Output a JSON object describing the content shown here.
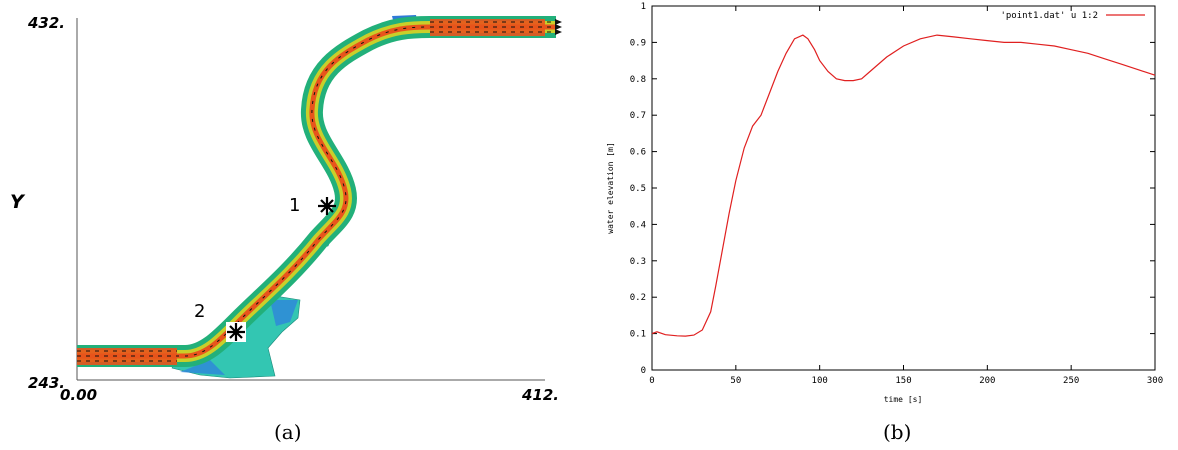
{
  "panel_a": {
    "y_axis_label": "Y",
    "y_top_label": "432.",
    "y_bottom_label": "243.",
    "x_left_label": "0.00",
    "x_right_label": "412.",
    "points": [
      {
        "label": "1"
      },
      {
        "label": "2"
      }
    ],
    "caption": "(a)"
  },
  "panel_b": {
    "caption": "(b)"
  },
  "chart_data": {
    "type": "line",
    "title": "",
    "xlabel": "time [s]",
    "ylabel": "water elevation [m]",
    "xlim": [
      0,
      300
    ],
    "ylim": [
      0,
      1
    ],
    "xticks": [
      0,
      50,
      100,
      150,
      200,
      250,
      300
    ],
    "yticks": [
      0,
      0.1,
      0.2,
      0.3,
      0.4,
      0.5,
      0.6,
      0.7,
      0.8,
      0.9,
      1
    ],
    "legend_position": "top-right",
    "grid": false,
    "series": [
      {
        "name": "'point1.dat' u 1:2",
        "color": "#e02020",
        "x": [
          0,
          3,
          8,
          15,
          20,
          25,
          30,
          35,
          38,
          42,
          46,
          50,
          55,
          60,
          65,
          70,
          75,
          80,
          85,
          90,
          93,
          97,
          100,
          105,
          110,
          115,
          120,
          125,
          130,
          140,
          150,
          160,
          170,
          180,
          190,
          200,
          210,
          220,
          230,
          240,
          250,
          260,
          270,
          280,
          290,
          300
        ],
        "y": [
          0.1,
          0.105,
          0.097,
          0.094,
          0.093,
          0.096,
          0.11,
          0.16,
          0.23,
          0.33,
          0.43,
          0.52,
          0.61,
          0.67,
          0.7,
          0.76,
          0.82,
          0.87,
          0.91,
          0.92,
          0.91,
          0.88,
          0.85,
          0.82,
          0.8,
          0.795,
          0.795,
          0.8,
          0.82,
          0.86,
          0.89,
          0.91,
          0.92,
          0.915,
          0.91,
          0.905,
          0.9,
          0.9,
          0.895,
          0.89,
          0.88,
          0.87,
          0.855,
          0.84,
          0.825,
          0.81
        ]
      }
    ]
  }
}
